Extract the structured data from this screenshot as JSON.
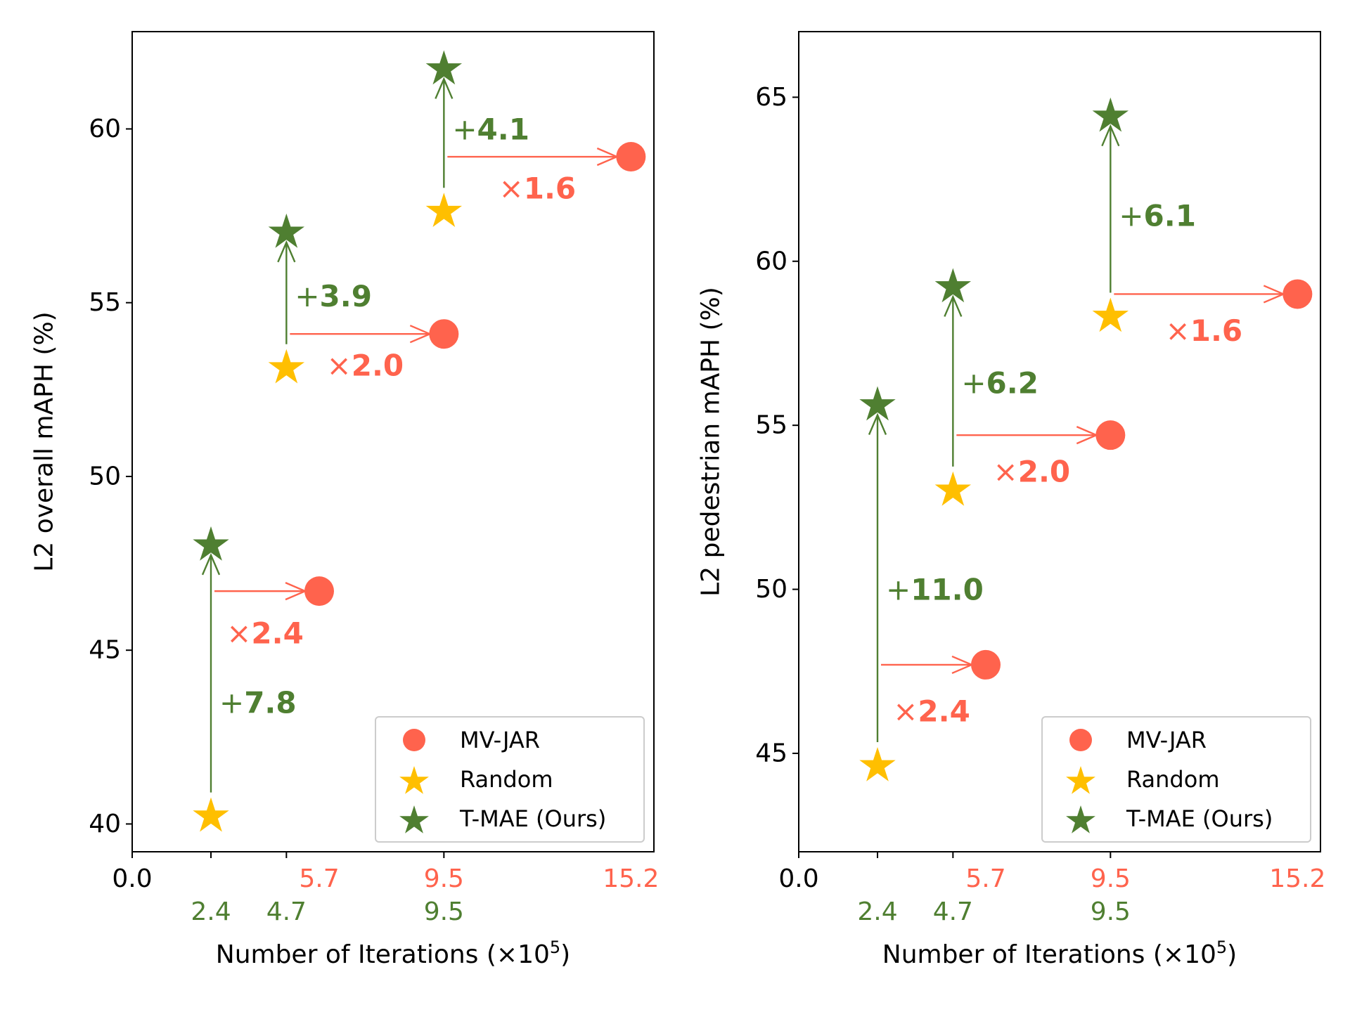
{
  "colors": {
    "mvjar": "#FF634D",
    "random": "#FFBF00",
    "tmae": "#4F7F31",
    "axis": "#000000"
  },
  "chart_data": [
    {
      "type": "scatter",
      "ylabel": "L2 overall mAPH (%)",
      "xlabel_prefix": "Number of Iterations (×10",
      "xlabel_exp": "5",
      "xlabel_suffix": ")",
      "xlim": [
        0,
        15.9
      ],
      "ylim": [
        39.2,
        62.8
      ],
      "yticks": [
        "40",
        "45",
        "50",
        "55",
        "60"
      ],
      "origin_label": "0.0",
      "xticks_mvjar": [
        5.7,
        9.5,
        15.2
      ],
      "xtick_labels_mvjar": [
        "5.7",
        "9.5",
        "15.2"
      ],
      "xticks_ours": [
        2.4,
        4.7,
        9.5
      ],
      "xtick_labels_ours": [
        "2.4",
        "4.7",
        "9.5"
      ],
      "series": [
        {
          "name": "MV-JAR",
          "marker": "circle",
          "points": [
            [
              5.7,
              46.7
            ],
            [
              9.5,
              54.1
            ],
            [
              15.2,
              59.2
            ]
          ]
        },
        {
          "name": "Random",
          "marker": "star",
          "points": [
            [
              2.4,
              40.3
            ],
            [
              4.7,
              53.2
            ],
            [
              9.5,
              57.7
            ]
          ]
        },
        {
          "name": "T-MAE (Ours)",
          "marker": "star",
          "points": [
            [
              2.4,
              48.1
            ],
            [
              4.7,
              57.1
            ],
            [
              9.5,
              61.8
            ]
          ]
        }
      ],
      "gain_annotations": [
        {
          "x": 2.4,
          "from": 40.3,
          "to": 48.1,
          "prefix": "+",
          "value": "7.8",
          "label_y": 43.5
        },
        {
          "x": 4.7,
          "from": 53.2,
          "to": 57.1,
          "prefix": "+",
          "value": "3.9",
          "label_y": 55.2
        },
        {
          "x": 9.5,
          "from": 57.7,
          "to": 61.8,
          "prefix": "+",
          "value": "4.1",
          "label_y": 60.0
        }
      ],
      "speed_annotations": [
        {
          "y": 46.7,
          "from": 2.4,
          "to": 5.7,
          "prefix": "×",
          "value": "2.4",
          "label_y": 45.5
        },
        {
          "y": 54.1,
          "from": 4.7,
          "to": 9.5,
          "prefix": "×",
          "value": "2.0",
          "label_y": 53.2
        },
        {
          "y": 59.2,
          "from": 9.5,
          "to": 15.2,
          "prefix": "×",
          "value": "1.6",
          "label_y": 58.3
        }
      ],
      "legend": [
        "MV-JAR",
        "Random",
        "T-MAE (Ours)"
      ]
    },
    {
      "type": "scatter",
      "ylabel": "L2 pedestrian mAPH (%)",
      "xlabel_prefix": "Number of Iterations (×10",
      "xlabel_exp": "5",
      "xlabel_suffix": ")",
      "xlim": [
        0,
        15.9
      ],
      "ylim": [
        42.0,
        67.0
      ],
      "yticks": [
        "45",
        "50",
        "55",
        "60",
        "65"
      ],
      "origin_label": "0.0",
      "xticks_mvjar": [
        5.7,
        9.5,
        15.2
      ],
      "xtick_labels_mvjar": [
        "5.7",
        "9.5",
        "15.2"
      ],
      "xticks_ours": [
        2.4,
        4.7,
        9.5
      ],
      "xtick_labels_ours": [
        "2.4",
        "4.7",
        "9.5"
      ],
      "series": [
        {
          "name": "MV-JAR",
          "marker": "circle",
          "points": [
            [
              5.7,
              47.7
            ],
            [
              9.5,
              54.7
            ],
            [
              15.2,
              59.0
            ]
          ]
        },
        {
          "name": "Random",
          "marker": "star",
          "points": [
            [
              2.4,
              44.7
            ],
            [
              4.7,
              53.1
            ],
            [
              9.5,
              58.4
            ]
          ]
        },
        {
          "name": "T-MAE (Ours)",
          "marker": "star",
          "points": [
            [
              2.4,
              55.7
            ],
            [
              4.7,
              59.3
            ],
            [
              9.5,
              64.5
            ]
          ]
        }
      ],
      "gain_annotations": [
        {
          "x": 2.4,
          "from": 44.7,
          "to": 55.7,
          "prefix": "+",
          "value": "11.0",
          "label_y": 50.0
        },
        {
          "x": 4.7,
          "from": 53.1,
          "to": 59.3,
          "prefix": "+",
          "value": "6.2",
          "label_y": 56.3
        },
        {
          "x": 9.5,
          "from": 58.4,
          "to": 64.5,
          "prefix": "+",
          "value": "6.1",
          "label_y": 61.4
        }
      ],
      "speed_annotations": [
        {
          "y": 47.7,
          "from": 2.4,
          "to": 5.7,
          "prefix": "×",
          "value": "2.4",
          "label_y": 46.3
        },
        {
          "y": 54.7,
          "from": 4.7,
          "to": 9.5,
          "prefix": "×",
          "value": "2.0",
          "label_y": 53.6
        },
        {
          "y": 59.0,
          "from": 9.5,
          "to": 15.2,
          "prefix": "×",
          "value": "1.6",
          "label_y": 57.9
        }
      ],
      "legend": [
        "MV-JAR",
        "Random",
        "T-MAE (Ours)"
      ]
    }
  ]
}
